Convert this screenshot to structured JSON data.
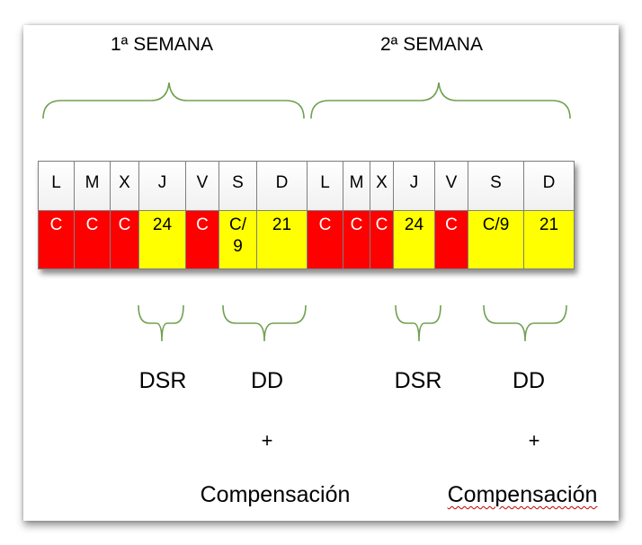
{
  "weeks": [
    {
      "title": "1ª  SEMANA",
      "days": [
        "L",
        "M",
        "X",
        "J",
        "V",
        "S",
        "D"
      ],
      "shifts": [
        "C",
        "C",
        "C",
        "24",
        "C",
        "C/\n9",
        "21"
      ],
      "shift_colors": [
        "red",
        "red",
        "red",
        "yellow",
        "red",
        "yellow",
        "yellow"
      ]
    },
    {
      "title": "2ª  SEMANA",
      "days": [
        "L",
        "M",
        "X",
        "J",
        "V",
        "S",
        "D"
      ],
      "shifts": [
        "C",
        "C",
        "C",
        "24",
        "C",
        "C/9",
        "21"
      ],
      "shift_colors": [
        "red",
        "red",
        "red",
        "yellow",
        "red",
        "yellow",
        "yellow"
      ]
    }
  ],
  "annotations": {
    "dsr": "DSR",
    "dd": "DD",
    "plus": "+",
    "compensation": "Compensación"
  },
  "colors": {
    "brace": "#70a050",
    "rest_day": "#ff0000",
    "work_day": "#ffff00",
    "border": "#7f7f7f"
  }
}
